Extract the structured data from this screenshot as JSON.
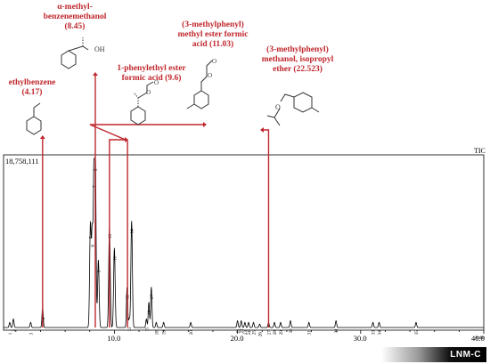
{
  "chart_data": {
    "type": "line",
    "trace_name": "TIC",
    "max_intensity_label": "18,758,111",
    "x_unit": "min",
    "xlim": [
      1.0,
      40.0
    ],
    "x_ticks": [
      "10.0",
      "20.0",
      "30.0",
      "40.0"
    ],
    "peaks": [
      {
        "rt": 1.5,
        "rel": 0.03,
        "label": "1"
      },
      {
        "rt": 1.8,
        "rel": 0.05,
        "label": "2"
      },
      {
        "rt": 3.2,
        "rel": 0.03,
        "label": "3"
      },
      {
        "rt": 4.17,
        "rel": 0.12,
        "label": "4"
      },
      {
        "rt": 8.05,
        "rel": 0.6,
        "label": "5"
      },
      {
        "rt": 8.2,
        "rel": 0.55,
        "label": "6"
      },
      {
        "rt": 8.35,
        "rel": 0.9,
        "label": "7"
      },
      {
        "rt": 8.45,
        "rel": 1.0,
        "label": "8"
      },
      {
        "rt": 8.7,
        "rel": 0.4,
        "label": "9"
      },
      {
        "rt": 9.6,
        "rel": 0.6,
        "label": "10"
      },
      {
        "rt": 10.0,
        "rel": 0.47,
        "label": "11"
      },
      {
        "rt": 11.03,
        "rel": 0.24,
        "label": "12"
      },
      {
        "rt": 11.2,
        "rel": 0.05,
        "label": "13"
      },
      {
        "rt": 11.4,
        "rel": 0.63,
        "label": "14"
      },
      {
        "rt": 12.6,
        "rel": 0.05,
        "label": "15"
      },
      {
        "rt": 12.8,
        "rel": 0.15,
        "label": "16"
      },
      {
        "rt": 13.0,
        "rel": 0.24,
        "label": "17"
      },
      {
        "rt": 13.4,
        "rel": 0.03,
        "label": "18"
      },
      {
        "rt": 14.0,
        "rel": 0.03,
        "label": "19"
      },
      {
        "rt": 16.2,
        "rel": 0.03,
        "label": "20"
      },
      {
        "rt": 20.0,
        "rel": 0.04,
        "label": "21"
      },
      {
        "rt": 20.3,
        "rel": 0.04,
        "label": "22"
      },
      {
        "rt": 20.6,
        "rel": 0.03,
        "label": "23"
      },
      {
        "rt": 20.9,
        "rel": 0.03,
        "label": "24"
      },
      {
        "rt": 21.3,
        "rel": 0.03,
        "label": "25"
      },
      {
        "rt": 21.8,
        "rel": 0.02,
        "label": "26"
      },
      {
        "rt": 22.52,
        "rel": 0.03,
        "label": "27"
      },
      {
        "rt": 23.0,
        "rel": 0.03,
        "label": "28"
      },
      {
        "rt": 23.5,
        "rel": 0.03,
        "label": "29"
      },
      {
        "rt": 24.3,
        "rel": 0.04,
        "label": "30"
      },
      {
        "rt": 25.8,
        "rel": 0.03,
        "label": "31"
      },
      {
        "rt": 28.0,
        "rel": 0.04,
        "label": "32"
      },
      {
        "rt": 31.0,
        "rel": 0.03,
        "label": "33"
      },
      {
        "rt": 31.5,
        "rel": 0.03,
        "label": "34"
      },
      {
        "rt": 34.5,
        "rel": 0.03,
        "label": "35"
      }
    ],
    "annotations": [
      {
        "id": "ethylbenzene",
        "name": "ethylbenzene",
        "rt_text": "(4.17)",
        "rt": 4.17
      },
      {
        "id": "methylbenzenemethanol",
        "name": "α-methyl-benzenemethanol",
        "rt_text": "(8.45)",
        "rt": 8.45
      },
      {
        "id": "phenylethyl-ester",
        "name": "1-phenylethyl ester formic acid",
        "rt_text": "(9.6)",
        "rt": 9.6
      },
      {
        "id": "methylphenyl-ester",
        "name": "(3-methylphenyl) methyl ester formic acid",
        "rt_text": "(11.03)",
        "rt": 11.03
      },
      {
        "id": "methylphenyl-ether",
        "name": "(3-methylphenyl) methanol, isopropyl ether",
        "rt_text": "(22.523)",
        "rt": 22.523
      }
    ]
  },
  "labels": {
    "ethylbenzene": [
      "ethylbenzene",
      "(4.17)"
    ],
    "methylbenzenemethanol": [
      "α-methyl-",
      "benzenemethanol",
      "(8.45)"
    ],
    "phenylethyl_ester": [
      "1-phenylethyl ester",
      "formic acid (9.6)"
    ],
    "methylphenyl_ester": [
      "(3-methylphenyl)",
      "methyl ester formic",
      "acid (11.03)"
    ],
    "methylphenyl_ether": [
      "(3-methylphenyl)",
      "methanol, isopropyl",
      "ether  (22.523)"
    ]
  },
  "structure_atoms": {
    "oh": "OH",
    "o": "O"
  },
  "badge": "LNM-C",
  "colors": {
    "annotation": "#c0272d",
    "trace": "#000000"
  }
}
